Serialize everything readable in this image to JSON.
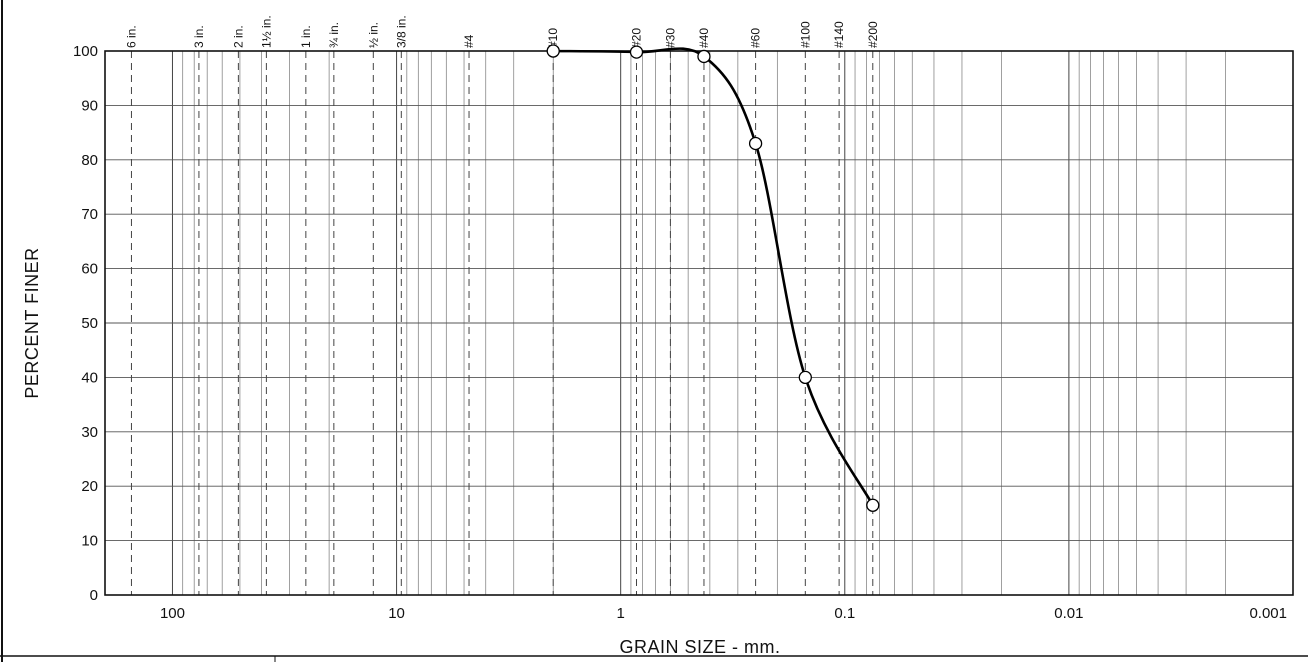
{
  "chart_data": {
    "type": "line",
    "title": "",
    "xlabel": "GRAIN SIZE - mm.",
    "ylabel": "PERCENT FINER",
    "x_scale": "log",
    "x_reversed": true,
    "xlim": [
      200,
      0.001
    ],
    "ylim": [
      0,
      100
    ],
    "y_ticks": [
      0,
      10,
      20,
      30,
      40,
      50,
      60,
      70,
      80,
      90,
      100
    ],
    "x_tick_labels": [
      {
        "value": 100,
        "label": "100"
      },
      {
        "value": 10,
        "label": "10"
      },
      {
        "value": 1,
        "label": "1"
      },
      {
        "value": 0.1,
        "label": "0.1"
      },
      {
        "value": 0.01,
        "label": "0.01"
      },
      {
        "value": 0.001,
        "label": "0.001"
      }
    ],
    "sieves": [
      {
        "label": "6 in.",
        "size_mm": 152.4
      },
      {
        "label": "3 in.",
        "size_mm": 76.2
      },
      {
        "label": "2 in.",
        "size_mm": 50.8
      },
      {
        "label": "1½ in.",
        "size_mm": 38.1
      },
      {
        "label": "1 in.",
        "size_mm": 25.4
      },
      {
        "label": "¾ in.",
        "size_mm": 19.05
      },
      {
        "label": "½ in.",
        "size_mm": 12.7
      },
      {
        "label": "3/8 in.",
        "size_mm": 9.525
      },
      {
        "label": "#4",
        "size_mm": 4.75
      },
      {
        "label": "#10",
        "size_mm": 2.0
      },
      {
        "label": "#20",
        "size_mm": 0.85
      },
      {
        "label": "#30",
        "size_mm": 0.6
      },
      {
        "label": "#40",
        "size_mm": 0.425
      },
      {
        "label": "#60",
        "size_mm": 0.25
      },
      {
        "label": "#100",
        "size_mm": 0.15
      },
      {
        "label": "#140",
        "size_mm": 0.106
      },
      {
        "label": "#200",
        "size_mm": 0.075
      }
    ],
    "grid": true,
    "series": [
      {
        "points": [
          {
            "x": 2.0,
            "y": 100
          },
          {
            "x": 0.85,
            "y": 99.8
          },
          {
            "x": 0.425,
            "y": 99
          },
          {
            "x": 0.25,
            "y": 83
          },
          {
            "x": 0.15,
            "y": 40
          },
          {
            "x": 0.075,
            "y": 16.5
          }
        ]
      }
    ]
  }
}
